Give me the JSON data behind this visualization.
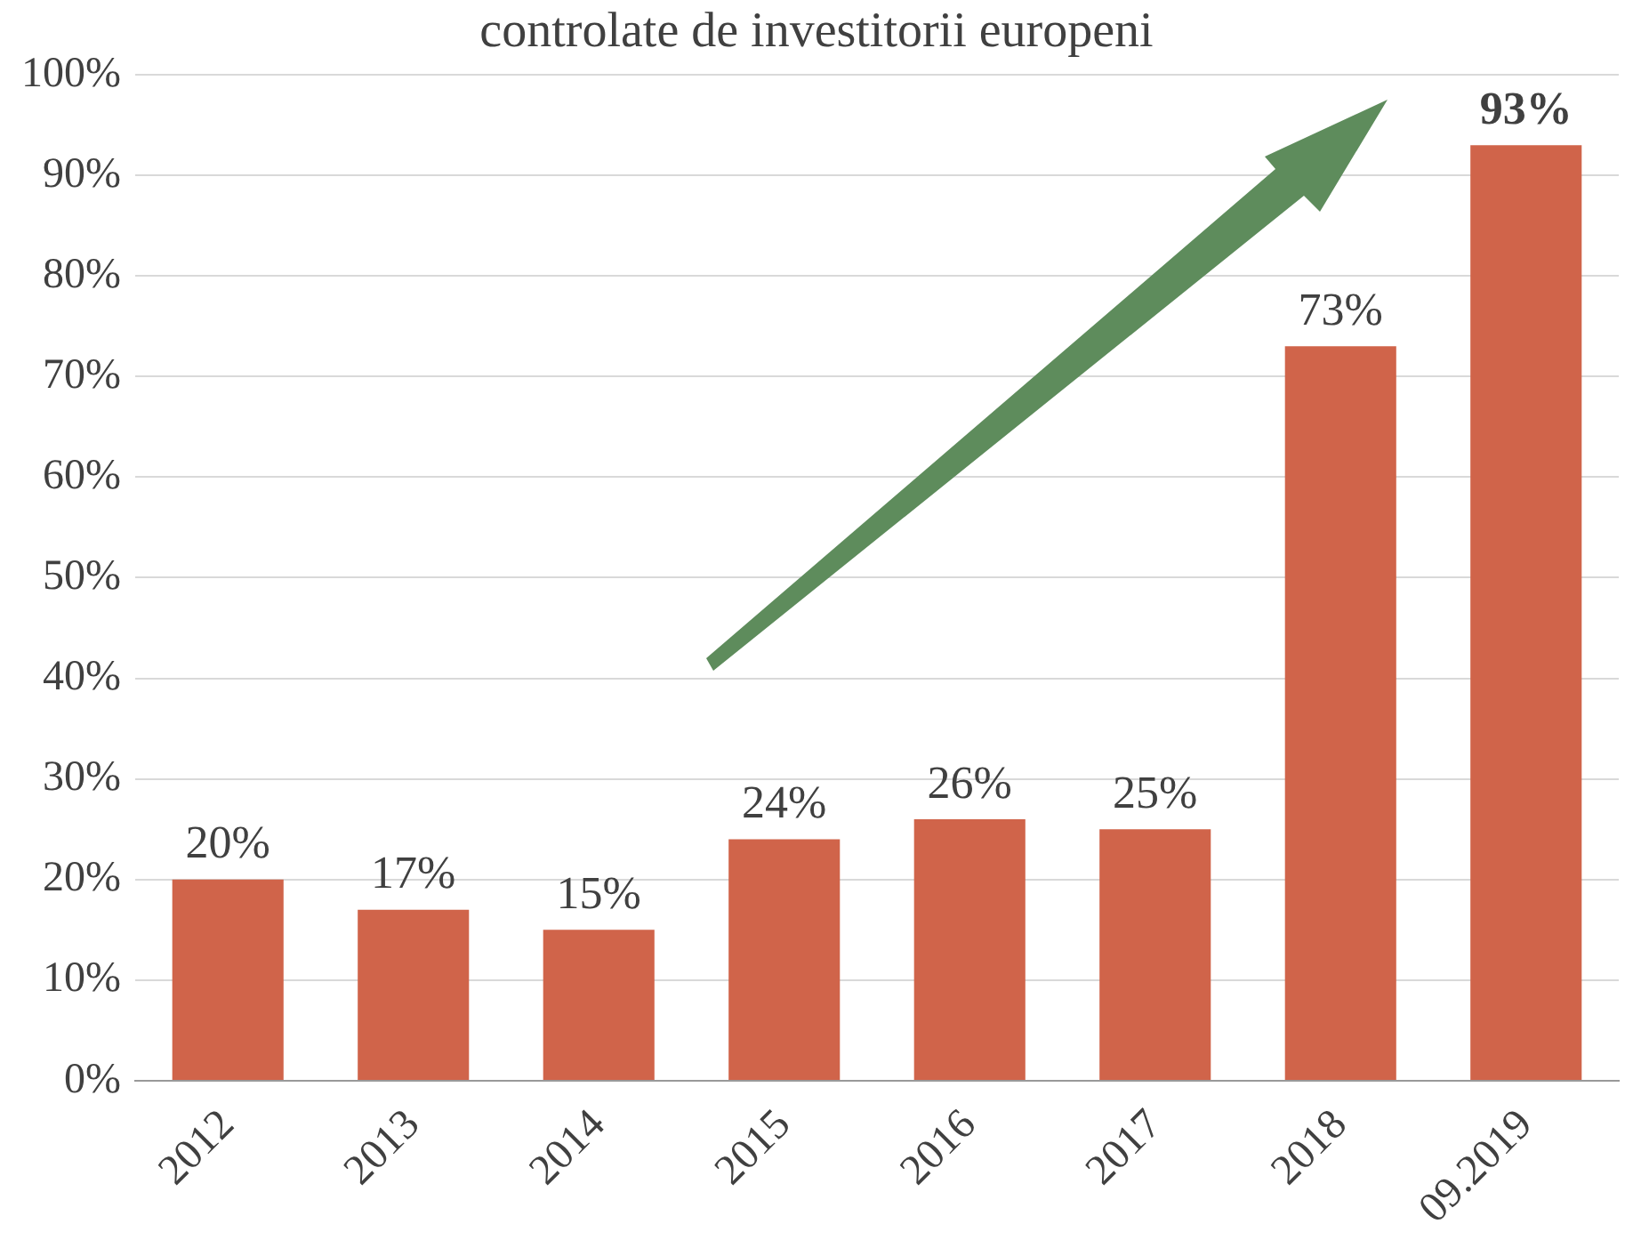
{
  "chart_data": {
    "type": "bar",
    "title": "controlate de investitorii europeni",
    "categories": [
      "2012",
      "2013",
      "2014",
      "2015",
      "2016",
      "2017",
      "2018",
      "09.2019"
    ],
    "values": [
      20,
      17,
      15,
      24,
      26,
      25,
      73,
      93
    ],
    "color": "#d0644a",
    "ylim": [
      0,
      100
    ],
    "yticks": [
      {
        "value": 0,
        "label": "0%"
      },
      {
        "value": 10,
        "label": "10%"
      },
      {
        "value": 20,
        "label": "20%"
      },
      {
        "value": 30,
        "label": "30%"
      },
      {
        "value": 40,
        "label": "40%"
      },
      {
        "value": 50,
        "label": "50%"
      },
      {
        "value": 60,
        "label": "60%"
      },
      {
        "value": 70,
        "label": "70%"
      },
      {
        "value": 80,
        "label": "80%"
      },
      {
        "value": 90,
        "label": "90%"
      },
      {
        "value": 100,
        "label": "100%"
      }
    ],
    "value_labels": [
      "20%",
      "17%",
      "15%",
      "24%",
      "26%",
      "25%",
      "73%",
      "93%"
    ],
    "grid": "y",
    "legend": false
  }
}
